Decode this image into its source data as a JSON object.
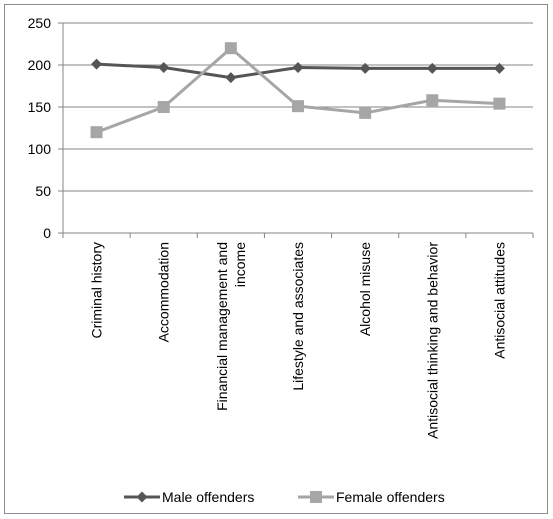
{
  "chart_data": {
    "type": "line",
    "categories": [
      [
        "Criminal history"
      ],
      [
        "Accommodation"
      ],
      [
        "Financial management and",
        "income"
      ],
      [
        "Lifestyle and associates"
      ],
      [
        "Alcohol misuse"
      ],
      [
        "Antisocial thinking and behavior"
      ],
      [
        "Antisocial attitudes"
      ]
    ],
    "series": [
      {
        "name": "Male offenders",
        "values": [
          201,
          197,
          185,
          197,
          196,
          196,
          196
        ],
        "color": "#555555",
        "marker": "diamond"
      },
      {
        "name": "Female offenders",
        "values": [
          120,
          150,
          220,
          151,
          143,
          158,
          154
        ],
        "color": "#a6a6a6",
        "marker": "square"
      }
    ],
    "yticks": [
      0,
      50,
      100,
      150,
      200,
      250
    ],
    "ylim": [
      0,
      250
    ],
    "grid": true,
    "legend_position": "bottom"
  }
}
